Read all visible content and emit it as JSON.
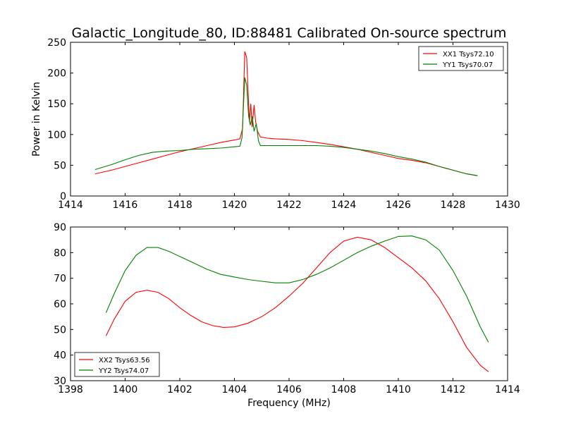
{
  "chart_data": [
    {
      "type": "line",
      "title": "Galactic_Longitude_80, ID:88481 Calibrated On-source spectrum",
      "xlabel": "",
      "ylabel": "Power in Kelvin",
      "xlim": [
        1414,
        1430
      ],
      "ylim": [
        0,
        250
      ],
      "xticks": [
        "1414",
        "1416",
        "1418",
        "1420",
        "1422",
        "1424",
        "1426",
        "1428",
        "1430"
      ],
      "yticks": [
        "0",
        "50",
        "100",
        "150",
        "200",
        "250"
      ],
      "legend_position": "top-right",
      "series": [
        {
          "name": "XX1 Tsys72.10",
          "color": "#ff0000",
          "points": [
            [
              1414.9,
              36
            ],
            [
              1415.5,
              42
            ],
            [
              1416.0,
              48
            ],
            [
              1416.5,
              54
            ],
            [
              1417.0,
              60
            ],
            [
              1417.5,
              66
            ],
            [
              1418.0,
              72
            ],
            [
              1418.5,
              77
            ],
            [
              1419.0,
              82
            ],
            [
              1419.5,
              87
            ],
            [
              1420.0,
              91
            ],
            [
              1420.2,
              93
            ],
            [
              1420.3,
              110
            ],
            [
              1420.38,
              235
            ],
            [
              1420.45,
              225
            ],
            [
              1420.5,
              170
            ],
            [
              1420.55,
              120
            ],
            [
              1420.6,
              150
            ],
            [
              1420.65,
              112
            ],
            [
              1420.72,
              148
            ],
            [
              1420.78,
              120
            ],
            [
              1420.85,
              105
            ],
            [
              1420.95,
              96
            ],
            [
              1421.2,
              94
            ],
            [
              1421.5,
              93
            ],
            [
              1422.0,
              92
            ],
            [
              1422.5,
              90
            ],
            [
              1423.0,
              87
            ],
            [
              1423.5,
              84
            ],
            [
              1424.0,
              80
            ],
            [
              1424.5,
              76
            ],
            [
              1425.0,
              71
            ],
            [
              1425.5,
              66
            ],
            [
              1426.0,
              61
            ],
            [
              1426.5,
              58
            ],
            [
              1427.0,
              54
            ],
            [
              1427.5,
              48
            ],
            [
              1428.0,
              42
            ],
            [
              1428.5,
              36
            ],
            [
              1428.9,
              33
            ]
          ]
        },
        {
          "name": "YY1 Tsys70.07",
          "color": "#008000",
          "points": [
            [
              1414.9,
              43
            ],
            [
              1415.5,
              51
            ],
            [
              1416.0,
              59
            ],
            [
              1416.5,
              66
            ],
            [
              1417.0,
              71
            ],
            [
              1417.5,
              73
            ],
            [
              1418.0,
              74
            ],
            [
              1418.5,
              76
            ],
            [
              1419.0,
              77
            ],
            [
              1419.5,
              78
            ],
            [
              1420.0,
              80
            ],
            [
              1420.2,
              81
            ],
            [
              1420.28,
              95
            ],
            [
              1420.38,
              193
            ],
            [
              1420.45,
              180
            ],
            [
              1420.52,
              130
            ],
            [
              1420.58,
              115
            ],
            [
              1420.65,
              130
            ],
            [
              1420.72,
              105
            ],
            [
              1420.8,
              118
            ],
            [
              1420.88,
              90
            ],
            [
              1420.95,
              82
            ],
            [
              1421.2,
              82
            ],
            [
              1421.5,
              82
            ],
            [
              1422.0,
              82
            ],
            [
              1422.5,
              82
            ],
            [
              1423.0,
              82
            ],
            [
              1423.5,
              81
            ],
            [
              1424.0,
              79
            ],
            [
              1424.5,
              76
            ],
            [
              1425.0,
              73
            ],
            [
              1425.5,
              69
            ],
            [
              1426.0,
              64
            ],
            [
              1426.5,
              60
            ],
            [
              1427.0,
              55
            ],
            [
              1427.5,
              48
            ],
            [
              1428.0,
              42
            ],
            [
              1428.5,
              36
            ],
            [
              1428.9,
              33
            ]
          ]
        }
      ]
    },
    {
      "type": "line",
      "title": "",
      "xlabel": "Frequency (MHz)",
      "ylabel": "",
      "xlim": [
        1398,
        1414
      ],
      "ylim": [
        30,
        90
      ],
      "xticks": [
        "1398",
        "1400",
        "1402",
        "1404",
        "1406",
        "1408",
        "1410",
        "1412",
        "1414"
      ],
      "yticks": [
        "30",
        "40",
        "50",
        "60",
        "70",
        "80",
        "90"
      ],
      "legend_position": "bottom-left",
      "series": [
        {
          "name": "XX2 Tsys63.56",
          "color": "#ff0000",
          "points": [
            [
              1399.3,
              47.5
            ],
            [
              1399.6,
              54
            ],
            [
              1400.0,
              61
            ],
            [
              1400.4,
              64.5
            ],
            [
              1400.8,
              65.3
            ],
            [
              1401.2,
              64.5
            ],
            [
              1401.6,
              62
            ],
            [
              1402.0,
              58.5
            ],
            [
              1402.4,
              55.5
            ],
            [
              1402.8,
              53
            ],
            [
              1403.2,
              51.5
            ],
            [
              1403.6,
              50.8
            ],
            [
              1404.0,
              51
            ],
            [
              1404.5,
              52.5
            ],
            [
              1405.0,
              55
            ],
            [
              1405.5,
              58.5
            ],
            [
              1406.0,
              63
            ],
            [
              1406.5,
              68
            ],
            [
              1407.0,
              74
            ],
            [
              1407.5,
              80
            ],
            [
              1408.0,
              84.5
            ],
            [
              1408.5,
              86
            ],
            [
              1409.0,
              85
            ],
            [
              1409.5,
              82
            ],
            [
              1410.0,
              78
            ],
            [
              1410.5,
              74
            ],
            [
              1411.0,
              69
            ],
            [
              1411.5,
              62
            ],
            [
              1412.0,
              53
            ],
            [
              1412.5,
              43
            ],
            [
              1413.0,
              36
            ],
            [
              1413.3,
              33.5
            ]
          ]
        },
        {
          "name": "YY2 Tsys74.07",
          "color": "#008000",
          "points": [
            [
              1399.3,
              56.5
            ],
            [
              1399.6,
              64
            ],
            [
              1400.0,
              73
            ],
            [
              1400.4,
              79
            ],
            [
              1400.8,
              82
            ],
            [
              1401.2,
              82
            ],
            [
              1401.6,
              80.5
            ],
            [
              1402.0,
              78.5
            ],
            [
              1402.5,
              76
            ],
            [
              1403.0,
              73.5
            ],
            [
              1403.5,
              71.5
            ],
            [
              1404.0,
              70.5
            ],
            [
              1404.5,
              69.5
            ],
            [
              1405.0,
              68.8
            ],
            [
              1405.5,
              68.2
            ],
            [
              1406.0,
              68.2
            ],
            [
              1406.5,
              69.5
            ],
            [
              1407.0,
              71.5
            ],
            [
              1407.5,
              74
            ],
            [
              1408.0,
              77
            ],
            [
              1408.5,
              80
            ],
            [
              1409.0,
              82.5
            ],
            [
              1409.5,
              84.5
            ],
            [
              1410.0,
              86.3
            ],
            [
              1410.5,
              86.5
            ],
            [
              1411.0,
              85
            ],
            [
              1411.5,
              81
            ],
            [
              1412.0,
              73
            ],
            [
              1412.5,
              63
            ],
            [
              1413.0,
              51
            ],
            [
              1413.3,
              45
            ]
          ]
        }
      ]
    }
  ]
}
